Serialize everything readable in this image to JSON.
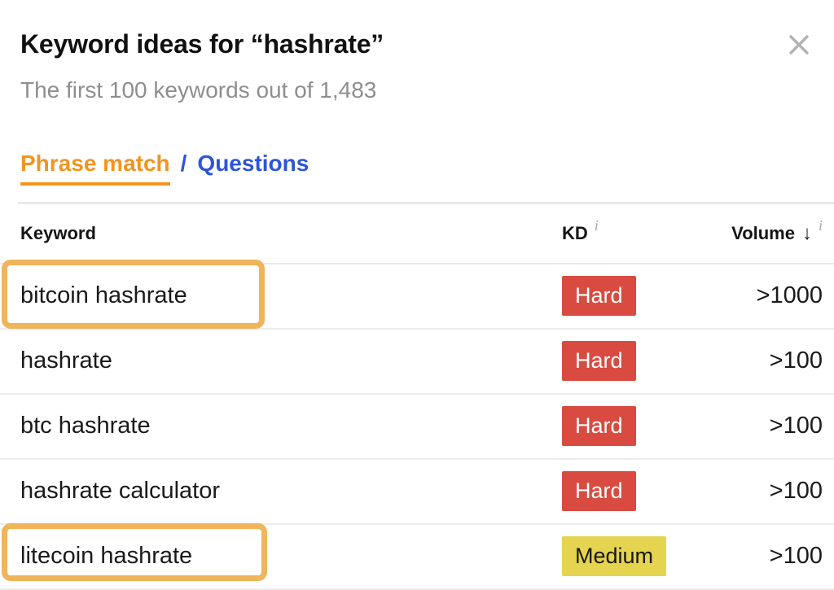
{
  "modal": {
    "title": "Keyword ideas for “hashrate”",
    "subtitle": "The first 100 keywords out of 1,483"
  },
  "tabs": {
    "items": [
      {
        "label": "Phrase match",
        "active": true
      },
      {
        "label": "Questions",
        "active": false
      }
    ],
    "separator": "/"
  },
  "table": {
    "columns": {
      "keyword": "Keyword",
      "kd": "KD",
      "volume": "Volume"
    },
    "sort_icon": "↓",
    "info_icon": "i",
    "rows": [
      {
        "keyword": "bitcoin hashrate",
        "kd": "Hard",
        "kd_level": "hard",
        "volume": ">1000",
        "highlight": true,
        "highlight_variant": "tall"
      },
      {
        "keyword": "hashrate",
        "kd": "Hard",
        "kd_level": "hard",
        "volume": ">100",
        "highlight": false,
        "highlight_variant": ""
      },
      {
        "keyword": "btc hashrate",
        "kd": "Hard",
        "kd_level": "hard",
        "volume": ">100",
        "highlight": false,
        "highlight_variant": ""
      },
      {
        "keyword": "hashrate calculator",
        "kd": "Hard",
        "kd_level": "hard",
        "volume": ">100",
        "highlight": false,
        "highlight_variant": ""
      },
      {
        "keyword": "litecoin hashrate",
        "kd": "Medium",
        "kd_level": "medium",
        "volume": ">100",
        "highlight": true,
        "highlight_variant": "short"
      }
    ]
  },
  "colors": {
    "accent_orange": "#f2941f",
    "link_blue": "#2d55d8",
    "kd_hard_bg": "#d94b40",
    "kd_hard_text": "#ffffff",
    "kd_medium_bg": "#e5d44f",
    "kd_medium_text": "#17170e",
    "highlight_border": "#f0b45a",
    "subtitle_gray": "#8e8e8e",
    "close_gray": "#b3b3b3",
    "divider_gray": "#e9e9e9"
  }
}
